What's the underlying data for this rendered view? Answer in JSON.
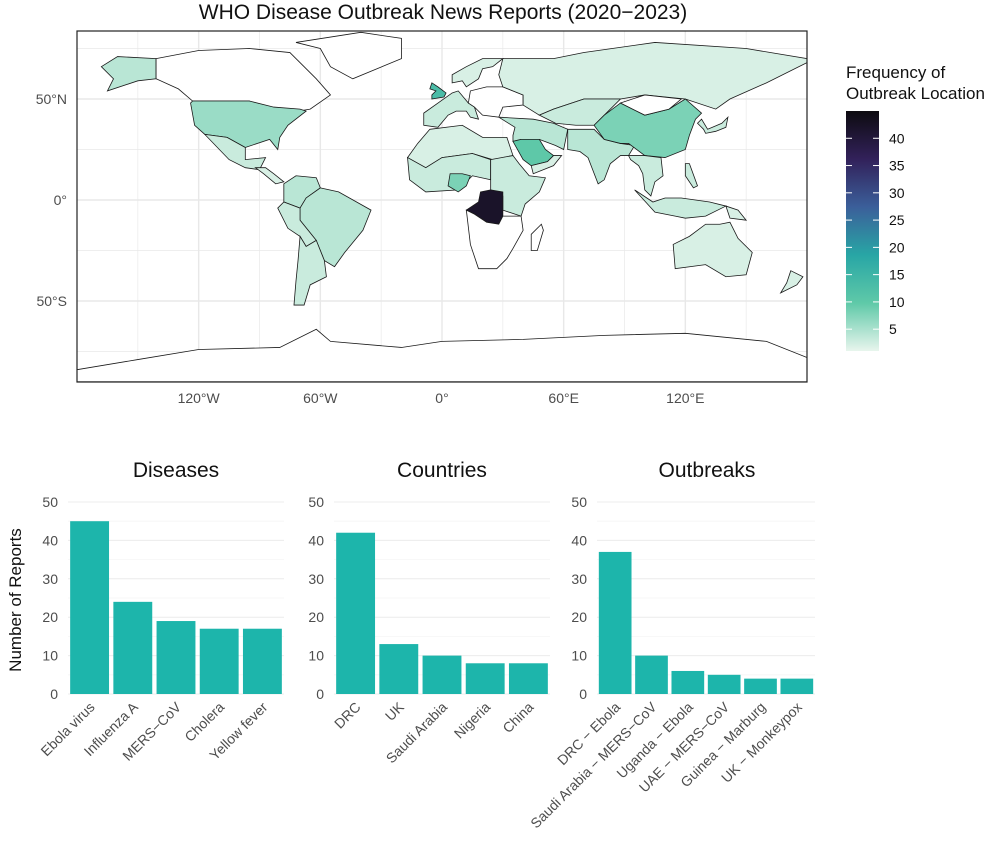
{
  "title": "WHO Disease Outbreak News Reports (2020−2023)",
  "map": {
    "lat_ticks": [
      "50°N",
      "0°",
      "50°S"
    ],
    "lon_ticks": [
      "120°W",
      "60°W",
      "0°",
      "60°E",
      "120°E"
    ],
    "legend": {
      "title_line1": "Frequency of",
      "title_line2": "Outbreak Location",
      "ticks": [
        5,
        10,
        15,
        20,
        25,
        30,
        35,
        40
      ],
      "range": [
        1,
        45
      ],
      "colors": [
        "#e8f5ed",
        "#5fc9a8",
        "#28a6a5",
        "#3b5f9a",
        "#32215a",
        "#0d0b10"
      ]
    },
    "colors": {
      "ocean": "#ffffff",
      "grid": "#e8e8e8",
      "land_no_data": "#ffffff",
      "border": "#1a1a1a"
    },
    "highlight_values": {
      "DRC": 42,
      "UK": 13,
      "Saudi Arabia": 10,
      "Nigeria": 8,
      "China": 8,
      "USA": 6
    }
  },
  "ylabel": "Number of Reports",
  "chart_data": [
    {
      "type": "bar",
      "title": "Diseases",
      "categories": [
        "Ebola virus",
        "Influenza A",
        "MERS−CoV",
        "Cholera",
        "Yellow fever"
      ],
      "values": [
        45,
        24,
        19,
        17,
        17
      ],
      "ylim": [
        0,
        50
      ],
      "yticks": [
        0,
        10,
        20,
        30,
        40,
        50
      ],
      "ylabel": "Number of Reports",
      "color": "#1db5ab"
    },
    {
      "type": "bar",
      "title": "Countries",
      "categories": [
        "DRC",
        "UK",
        "Saudi Arabia",
        "Nigeria",
        "China"
      ],
      "values": [
        42,
        13,
        10,
        8,
        8
      ],
      "ylim": [
        0,
        50
      ],
      "yticks": [
        0,
        10,
        20,
        30,
        40,
        50
      ],
      "color": "#1db5ab"
    },
    {
      "type": "bar",
      "title": "Outbreaks",
      "categories": [
        "DRC − Ebola",
        "Saudi Arabia − MERS−CoV",
        "Uganda − Ebola",
        "UAE − MERS−CoV",
        "Guinea − Marburg",
        "UK − Monkeypox"
      ],
      "values": [
        37,
        10,
        6,
        5,
        4,
        4
      ],
      "ylim": [
        0,
        50
      ],
      "yticks": [
        0,
        10,
        20,
        30,
        40,
        50
      ],
      "color": "#1db5ab"
    }
  ]
}
